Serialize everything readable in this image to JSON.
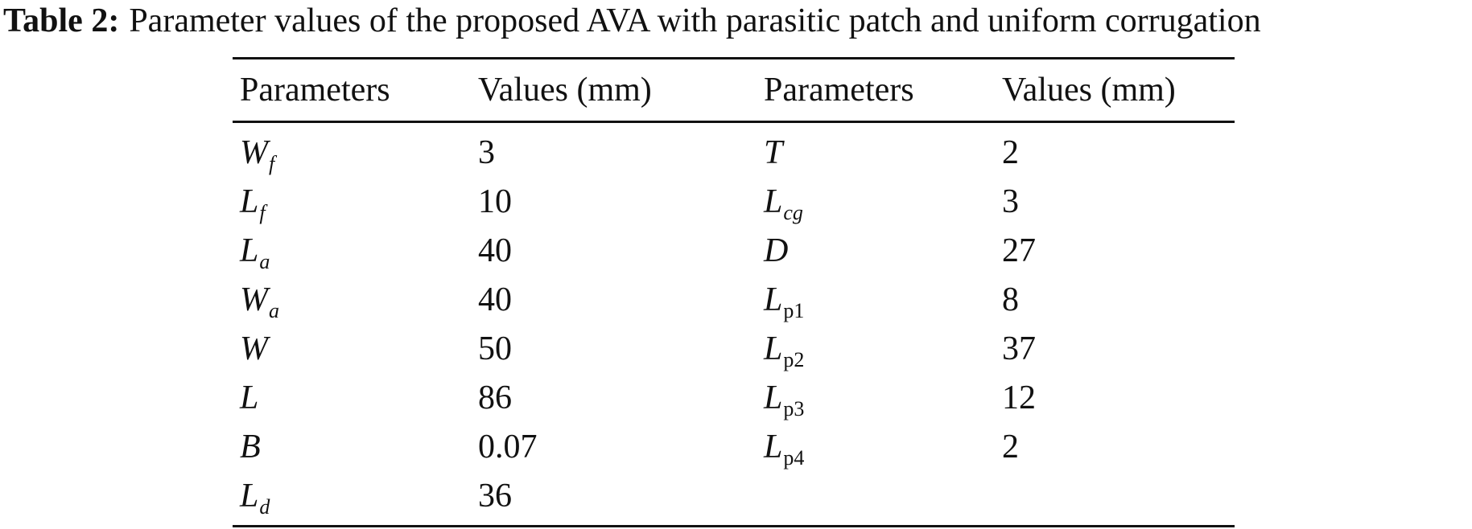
{
  "caption": {
    "label": "Table 2:",
    "text": "Parameter values of the proposed AVA with parasitic patch and uniform corrugation"
  },
  "table": {
    "headers": [
      "Parameters",
      "Values (mm)",
      "Parameters",
      "Values (mm)"
    ],
    "rows": [
      {
        "p1": {
          "base": "W",
          "sub": "f"
        },
        "v1": "3",
        "p2": {
          "base": "T",
          "sub": ""
        },
        "v2": "2"
      },
      {
        "p1": {
          "base": "L",
          "sub": "f"
        },
        "v1": "10",
        "p2": {
          "base": "L",
          "sub": "cg"
        },
        "v2": "3"
      },
      {
        "p1": {
          "base": "L",
          "sub": "a"
        },
        "v1": "40",
        "p2": {
          "base": "D",
          "sub": ""
        },
        "v2": "27"
      },
      {
        "p1": {
          "base": "W",
          "sub": "a"
        },
        "v1": "40",
        "p2": {
          "base": "L",
          "sub": "p1"
        },
        "v2": "8"
      },
      {
        "p1": {
          "base": "W",
          "sub": ""
        },
        "v1": "50",
        "p2": {
          "base": "L",
          "sub": "p2"
        },
        "v2": "37"
      },
      {
        "p1": {
          "base": "L",
          "sub": ""
        },
        "v1": "86",
        "p2": {
          "base": "L",
          "sub": "p3"
        },
        "v2": "12"
      },
      {
        "p1": {
          "base": "B",
          "sub": ""
        },
        "v1": "0.07",
        "p2": {
          "base": "L",
          "sub": "p4"
        },
        "v2": "2"
      },
      {
        "p1": {
          "base": "L",
          "sub": "d"
        },
        "v1": "36",
        "p2": {
          "base": "",
          "sub": ""
        },
        "v2": ""
      }
    ]
  }
}
